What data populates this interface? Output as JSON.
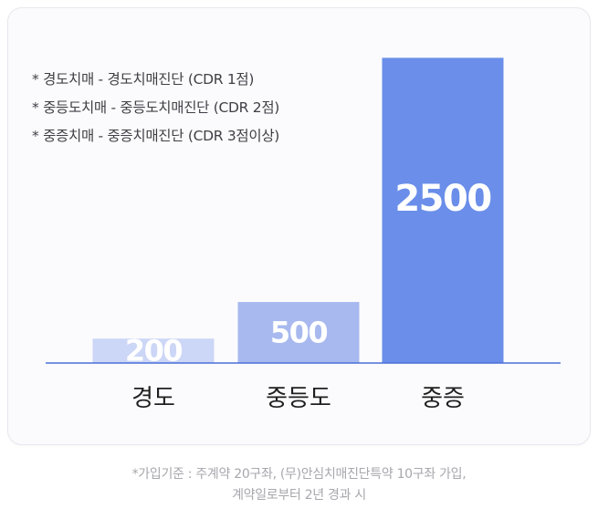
{
  "chart_data": {
    "type": "bar",
    "categories": [
      "경도",
      "중등도",
      "중증"
    ],
    "values": [
      200,
      500,
      2500
    ],
    "ylim": [
      0,
      2600
    ],
    "grid": false,
    "bar_colors": [
      "#ccd6f6",
      "#a8b9ef",
      "#6a8ee9"
    ],
    "axis_color": "#4a6fd8",
    "value_label_color": "#ffffff",
    "notes": [
      "* 경도치매 - 경도치매진단 (CDR 1점)",
      "* 중등도치매 - 중등도치매진단 (CDR 2점)",
      "* 중증치매 - 중증치매진단 (CDR 3점이상)"
    ]
  },
  "footnote": {
    "line1": "*가입기준 : 주계약 20구좌, (무)안심치매진단특약 10구좌 가입,",
    "line2": "계약일로부터 2년 경과 시"
  }
}
